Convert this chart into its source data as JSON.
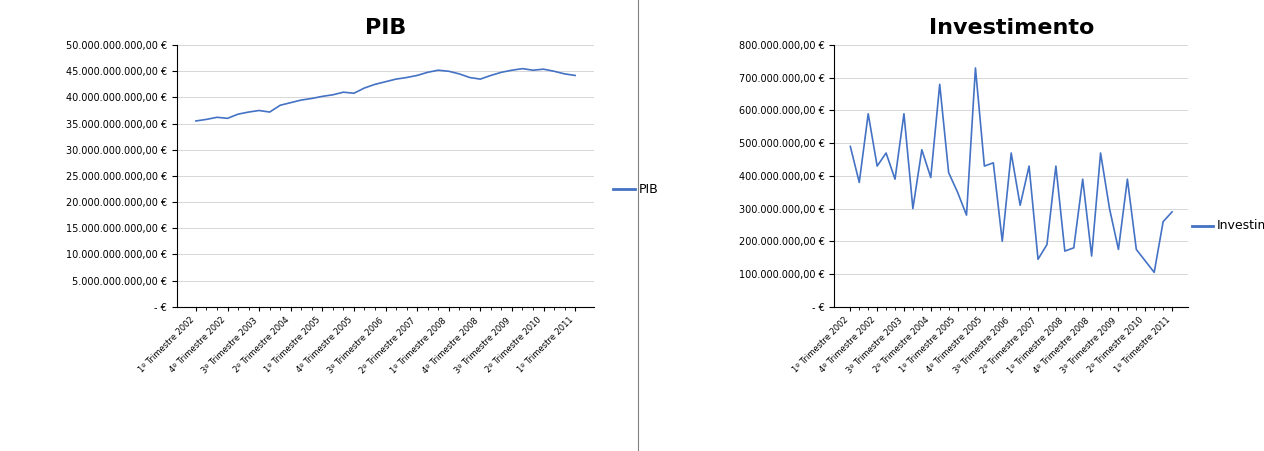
{
  "pib_title": "PIB",
  "inv_title": "Investimento",
  "pib_legend": "PIB",
  "inv_legend": "Investimento",
  "line_color": "#4472C4",
  "background_color": "#FFFFFF",
  "pib_ylim": [
    0,
    50000000000
  ],
  "pib_yticks": [
    0,
    5000000000,
    10000000000,
    15000000000,
    20000000000,
    25000000000,
    30000000000,
    35000000000,
    40000000000,
    45000000000,
    50000000000
  ],
  "inv_ylim": [
    0,
    800000000
  ],
  "inv_yticks": [
    0,
    100000000,
    200000000,
    300000000,
    400000000,
    500000000,
    600000000,
    700000000,
    800000000
  ],
  "x_labels_pib": [
    "1º Trimestre 2002",
    "4º Trimestre 2002",
    "3º Trimestre 2003",
    "2º Trimestre 2004",
    "1º Trimestre 2005",
    "4º Trimestre 2005",
    "3º Trimestre 2006",
    "2º Trimestre 2007",
    "1º Trimestre 2008",
    "4º Trimestre 2008",
    "3º Trimestre 2009",
    "2º Trimestre 2010",
    "1º Trimestre 2011"
  ],
  "x_labels_inv": [
    "1º Trimestre 2002",
    "4º Trimestre 2002",
    "3º Trimestre 2003",
    "2º Trimestre 2004",
    "1º Trimestre 2005",
    "4º Trimestre 2005",
    "3º Trimestre 2006",
    "2º Trimestre 2007",
    "1º Trimestre 2008",
    "4º Trimestre 2008",
    "3º Trimestre 2009",
    "2º Trimestre 2010",
    "1º Trimestre 2011"
  ],
  "pib_values": [
    35500000000,
    35800000000,
    36200000000,
    36000000000,
    36800000000,
    37200000000,
    37500000000,
    37200000000,
    38500000000,
    39000000000,
    39500000000,
    39800000000,
    40200000000,
    40500000000,
    41000000000,
    40800000000,
    41800000000,
    42500000000,
    43000000000,
    43500000000,
    43800000000,
    44200000000,
    44800000000,
    45200000000,
    45000000000,
    44500000000,
    43800000000,
    43500000000,
    44200000000,
    44800000000,
    45200000000,
    45500000000,
    45200000000,
    45400000000,
    45000000000,
    44500000000,
    44200000000
  ],
  "inv_values": [
    490000000,
    380000000,
    590000000,
    430000000,
    470000000,
    390000000,
    590000000,
    300000000,
    480000000,
    395000000,
    680000000,
    410000000,
    350000000,
    280000000,
    730000000,
    430000000,
    440000000,
    200000000,
    470000000,
    310000000,
    430000000,
    145000000,
    190000000,
    430000000,
    170000000,
    180000000,
    390000000,
    155000000,
    470000000,
    300000000,
    175000000,
    390000000,
    175000000,
    140000000,
    105000000,
    260000000,
    290000000
  ],
  "title_fontsize": 16,
  "ytick_fontsize": 7,
  "xtick_fontsize": 6,
  "legend_fontsize": 9
}
